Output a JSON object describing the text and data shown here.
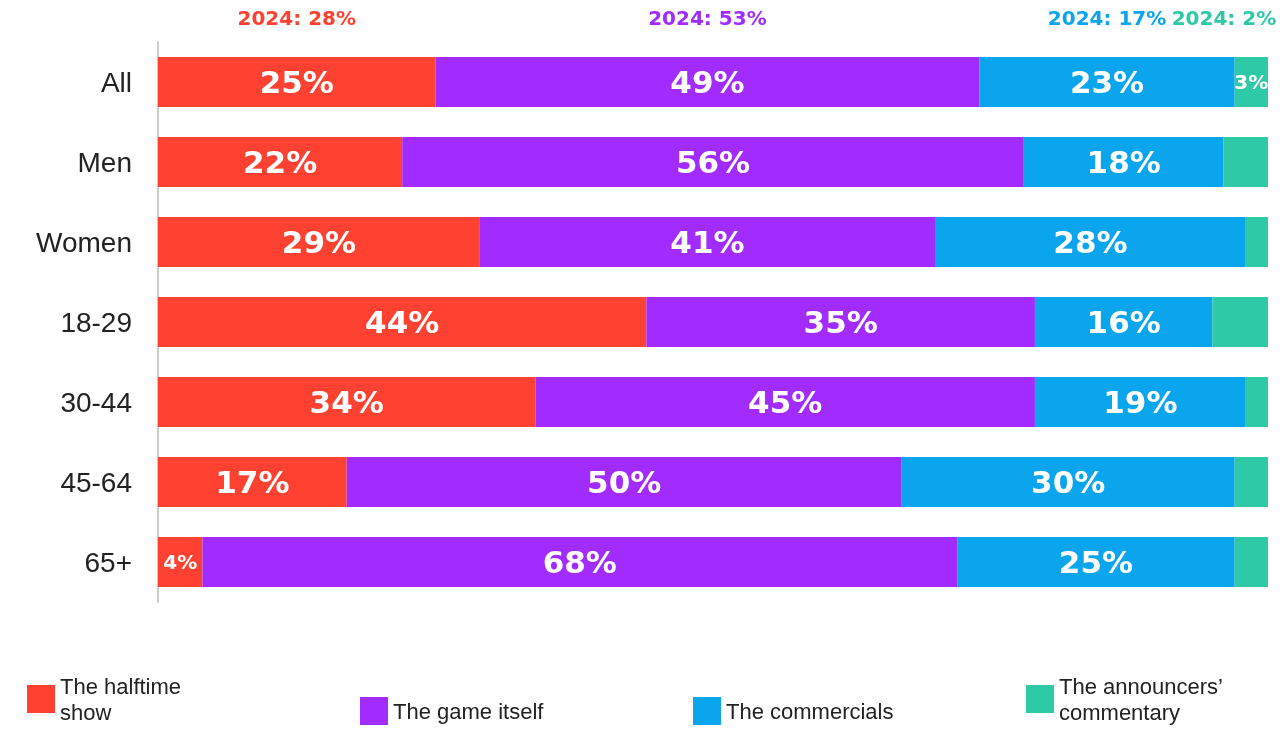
{
  "chart_data": {
    "type": "bar",
    "orientation": "horizontal",
    "stacked": true,
    "categories": [
      "All",
      "Men",
      "Women",
      "18-29",
      "30-44",
      "45-64",
      "65+"
    ],
    "series": [
      {
        "name": "The halftime show",
        "color": "#ff4131",
        "values": [
          25,
          22,
          29,
          44,
          34,
          17,
          4
        ],
        "value_labels": [
          "25%",
          "22%",
          "29%",
          "44%",
          "34%",
          "17%",
          "4%"
        ]
      },
      {
        "name": "The game itself",
        "color": "#a22bff",
        "values": [
          49,
          56,
          41,
          35,
          45,
          50,
          68
        ],
        "value_labels": [
          "49%",
          "56%",
          "41%",
          "35%",
          "45%",
          "50%",
          "68%"
        ]
      },
      {
        "name": "The commercials",
        "color": "#0aa5ec",
        "values": [
          23,
          18,
          28,
          16,
          19,
          30,
          25
        ],
        "value_labels": [
          "23%",
          "18%",
          "28%",
          "16%",
          "19%",
          "30%",
          "25%"
        ]
      },
      {
        "name": "The announcers’ commentary",
        "color": "#2ec9a6",
        "values": [
          3,
          4,
          2,
          5,
          2,
          3,
          3
        ],
        "value_labels": [
          "3%",
          null,
          null,
          null,
          null,
          null,
          null
        ]
      }
    ],
    "annotations": [
      "2024: 28%",
      "2024: 53%",
      "2024: 17%",
      "2024: 2%"
    ],
    "legend": "bottom"
  }
}
